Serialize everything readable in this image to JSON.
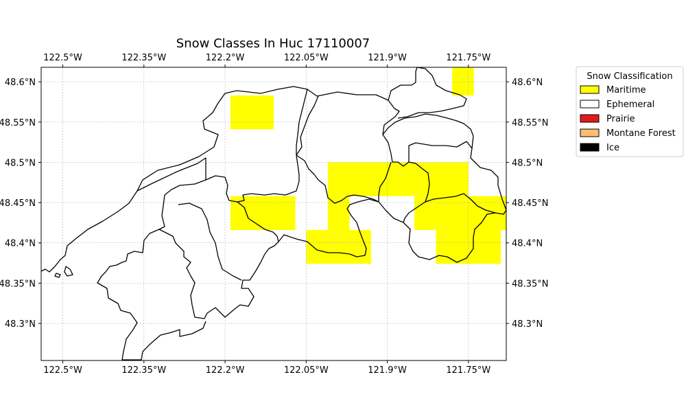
{
  "title": "Snow Classes In Huc 17110007",
  "chart_data": {
    "type": "heatmap",
    "title": "Snow Classes In Huc 17110007",
    "x_ticks": [
      {
        "lon": -122.5,
        "label": "122.5°W"
      },
      {
        "lon": -122.35,
        "label": "122.35°W"
      },
      {
        "lon": -122.2,
        "label": "122.2°W"
      },
      {
        "lon": -122.05,
        "label": "122.05°W"
      },
      {
        "lon": -121.9,
        "label": "121.9°W"
      },
      {
        "lon": -121.75,
        "label": "121.75°W"
      }
    ],
    "y_ticks": [
      {
        "lat": 48.6,
        "label": "48.6°N"
      },
      {
        "lat": 48.55,
        "label": "48.55°N"
      },
      {
        "lat": 48.5,
        "label": "48.5°N"
      },
      {
        "lat": 48.45,
        "label": "48.45°N"
      },
      {
        "lat": 48.4,
        "label": "48.4°N"
      },
      {
        "lat": 48.35,
        "label": "48.35°N"
      },
      {
        "lat": 48.3,
        "label": "48.3°N"
      }
    ],
    "xlim": [
      -122.54,
      -121.68
    ],
    "ylim": [
      48.254,
      48.618
    ],
    "grid": true,
    "legend": {
      "title": "Snow Classification",
      "placement": "outside-right-top",
      "entries": [
        {
          "label": "Maritime",
          "color": "#ffff00"
        },
        {
          "label": "Ephemeral",
          "color": "#ffffff"
        },
        {
          "label": "Prairie",
          "color": "#e31a1c"
        },
        {
          "label": "Montane Forest",
          "color": "#fdbf6f"
        },
        {
          "label": "Ice",
          "color": "#000000"
        }
      ]
    },
    "maritime_cells": [
      {
        "lon": [
          -121.78,
          -121.74
        ],
        "lat": [
          48.583,
          48.618
        ]
      },
      {
        "lon": [
          -122.19,
          -122.11
        ],
        "lat": [
          48.541,
          48.583
        ]
      },
      {
        "lon": [
          -122.01,
          -121.89
        ],
        "lat": [
          48.458,
          48.5
        ]
      },
      {
        "lon": [
          -121.89,
          -121.75
        ],
        "lat": [
          48.458,
          48.5
        ]
      },
      {
        "lon": [
          -122.19,
          -122.07
        ],
        "lat": [
          48.416,
          48.458
        ]
      },
      {
        "lon": [
          -122.01,
          -121.97
        ],
        "lat": [
          48.416,
          48.458
        ]
      },
      {
        "lon": [
          -121.85,
          -121.68
        ],
        "lat": [
          48.416,
          48.458
        ]
      },
      {
        "lon": [
          -122.05,
          -121.93
        ],
        "lat": [
          48.374,
          48.416
        ]
      },
      {
        "lon": [
          -121.81,
          -121.69
        ],
        "lat": [
          48.374,
          48.416
        ]
      }
    ]
  }
}
